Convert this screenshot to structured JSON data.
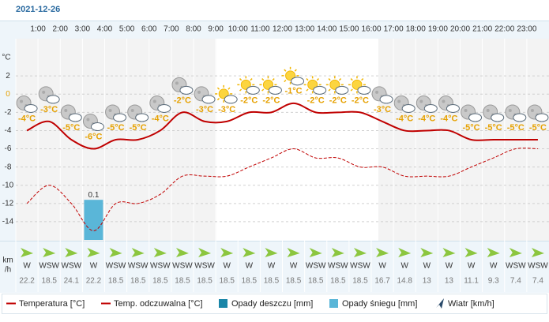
{
  "chart_data": {
    "type": "line",
    "title": "2021-12-26",
    "categories": [
      null,
      "1:00",
      "2:00",
      "3:00",
      "4:00",
      "5:00",
      "6:00",
      "7:00",
      "8:00",
      "9:00",
      "10:00",
      "11:00",
      "12:00",
      "13:00",
      "14:00",
      "15:00",
      "16:00",
      "17:00",
      "18:00",
      "19:00",
      "20:00",
      "21:00",
      "22:00",
      "23:00"
    ],
    "ylabel": "°C",
    "ylim": [
      -16,
      6
    ],
    "yticks": [
      2,
      0,
      -2,
      -4,
      -6,
      -8,
      -10,
      -12,
      -14
    ],
    "y2lim": [
      0,
      0.5
    ],
    "grid": true,
    "series": [
      {
        "name": "Temperatura [°C]",
        "color": "#c00000",
        "style": "solid",
        "values": [
          -4,
          -3,
          -5,
          -6,
          -5,
          -5,
          -4,
          -2,
          -3,
          -3,
          -2,
          -2,
          -1,
          -2,
          -2,
          -2,
          -3,
          -4,
          -4,
          -4,
          -5,
          -5,
          -5,
          -5
        ],
        "value_labels": [
          "-4°C",
          "-3°C",
          "-5°C",
          "-6°C",
          "-5°C",
          "-5°C",
          "-4°C",
          "-2°C",
          "-3°C",
          "-3°C",
          "-2°C",
          "-2°C",
          "-1°C",
          "-2°C",
          "-2°C",
          "-2°C",
          "-3°C",
          "-4°C",
          "-4°C",
          "-4°C",
          "-5°C",
          "-5°C",
          "-5°C",
          "-5°C"
        ]
      },
      {
        "name": "Temp. odczuwalna [°C]",
        "color": "#c00000",
        "style": "dashed",
        "values": [
          -12,
          -10,
          -12,
          -15,
          -12,
          -12,
          -11,
          -9,
          -9,
          -9,
          -8,
          -7,
          -6,
          -7,
          -7,
          -8,
          -8,
          -9,
          -9,
          -9,
          -8,
          -7,
          -6,
          -6
        ]
      },
      {
        "name": "Opady deszczu [mm]",
        "color": "#1a86a8",
        "axis": "y2",
        "values": [
          0,
          0,
          0,
          0,
          0,
          0,
          0,
          0,
          0,
          0,
          0,
          0,
          0,
          0,
          0,
          0,
          0,
          0,
          0,
          0,
          0,
          0,
          0,
          0
        ]
      },
      {
        "name": "Opady śniegu [mm]",
        "color": "#5ab6d8",
        "axis": "y2",
        "values": [
          0,
          0,
          0,
          0.1,
          0,
          0,
          0,
          0,
          0,
          0,
          0,
          0,
          0,
          0,
          0,
          0,
          0,
          0,
          0,
          0,
          0,
          0,
          0,
          0
        ]
      }
    ],
    "wind": {
      "name": "Wiatr [km/h]",
      "unit_label": [
        "km",
        "/h"
      ],
      "color": "#8cc63f",
      "directions": [
        "W",
        "WSW",
        "WSW",
        "W",
        "WSW",
        "WSW",
        "WSW",
        "WSW",
        "WSW",
        "W",
        "W",
        "W",
        "W",
        "WSW",
        "WSW",
        "WSW",
        "W",
        "W",
        "W",
        "W",
        "W",
        "W",
        "WSW",
        "WSW"
      ],
      "speeds": [
        22.2,
        18.5,
        24.1,
        22.2,
        18.5,
        18.5,
        18.5,
        18.5,
        18.5,
        18.5,
        18.5,
        18.5,
        18.5,
        18.5,
        18.5,
        18.5,
        16.7,
        14.8,
        13,
        13,
        11.1,
        9.3,
        7.4,
        7.4
      ]
    }
  }
}
